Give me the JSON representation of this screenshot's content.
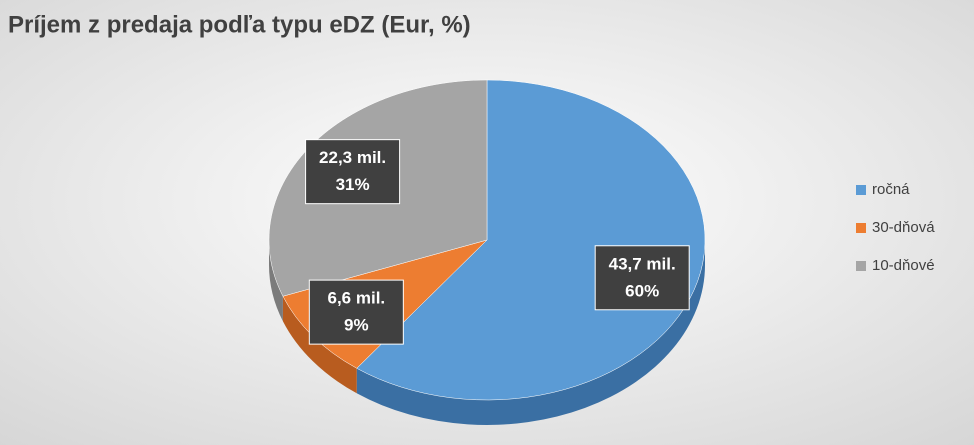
{
  "chart_data": {
    "type": "pie",
    "title": "Príjem z predaja podľa typu eDZ (Eur, %)",
    "categories": [
      "ročná",
      "30-dňová",
      "10-dňové"
    ],
    "values": [
      43.7,
      6.6,
      22.3
    ],
    "value_labels": [
      "43,7 mil.",
      "6,6 mil.",
      "22,3 mil."
    ],
    "percents": [
      60,
      9,
      31
    ],
    "percent_labels": [
      "60%",
      "9%",
      "31%"
    ],
    "colors": [
      "#5b9bd5",
      "#ed7d31",
      "#a5a5a5"
    ],
    "side_colors": [
      "#3a6fa3",
      "#b85c1f",
      "#7b7b7b"
    ],
    "legend": "right"
  }
}
